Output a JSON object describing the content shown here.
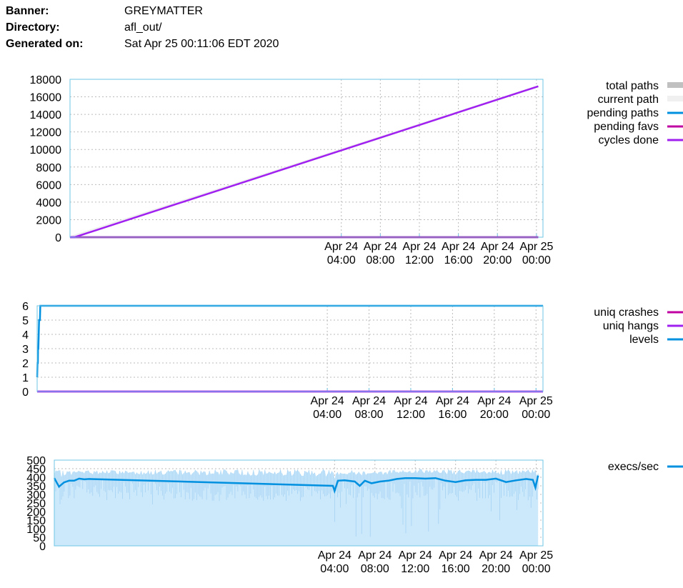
{
  "header": {
    "banner_label": "Banner:",
    "banner_value": "GREYMATTER",
    "directory_label": "Directory:",
    "directory_value": "afl_out/",
    "generated_label": "Generated on:",
    "generated_value": "Sat Apr 25 00:11:06 EDT 2020"
  },
  "chart_data": [
    {
      "type": "line",
      "x_range": [
        "2020-04-23 00:12",
        "2020-04-25 00:40"
      ],
      "xtick_labels": [
        {
          "x": "2020-04-24 04:00",
          "line1": "Apr 24",
          "line2": "04:00"
        },
        {
          "x": "2020-04-24 08:00",
          "line1": "Apr 24",
          "line2": "08:00"
        },
        {
          "x": "2020-04-24 12:00",
          "line1": "Apr 24",
          "line2": "12:00"
        },
        {
          "x": "2020-04-24 16:00",
          "line1": "Apr 24",
          "line2": "16:00"
        },
        {
          "x": "2020-04-24 20:00",
          "line1": "Apr 24",
          "line2": "20:00"
        },
        {
          "x": "2020-04-25 00:00",
          "line1": "Apr 25",
          "line2": "00:00"
        }
      ],
      "yticks": [
        0,
        2000,
        4000,
        6000,
        8000,
        10000,
        12000,
        14000,
        16000,
        18000
      ],
      "ylim": [
        0,
        18000
      ],
      "grid": true,
      "legend_position": "right",
      "series": [
        {
          "name": "total paths",
          "color": "#c0c0c0",
          "x": [
            "2020-04-23 00:12",
            "2020-04-25 00:11"
          ],
          "values": [
            0,
            17200
          ]
        },
        {
          "name": "current path",
          "color": "#f0f0f0",
          "x": [
            "2020-04-23 00:12",
            "2020-04-25 00:11"
          ],
          "values": [
            0,
            17200
          ]
        },
        {
          "name": "pending paths",
          "color": "#0090e0",
          "x": [
            "2020-04-23 00:12",
            "2020-04-25 00:11"
          ],
          "values": [
            0,
            0
          ]
        },
        {
          "name": "pending favs",
          "color": "#c000a0",
          "x": [
            "2020-04-23 00:12",
            "2020-04-25 00:11"
          ],
          "values": [
            0,
            0
          ]
        },
        {
          "name": "cycles done",
          "color": "#a020f0",
          "x": [
            "2020-04-23 00:12",
            "2020-04-23 00:40",
            "2020-04-25 00:11"
          ],
          "values": [
            0,
            0,
            17200
          ]
        }
      ]
    },
    {
      "type": "line",
      "x_range": [
        "2020-04-23 00:12",
        "2020-04-25 00:40"
      ],
      "xtick_labels": [
        {
          "x": "2020-04-24 04:00",
          "line1": "Apr 24",
          "line2": "04:00"
        },
        {
          "x": "2020-04-24 08:00",
          "line1": "Apr 24",
          "line2": "08:00"
        },
        {
          "x": "2020-04-24 12:00",
          "line1": "Apr 24",
          "line2": "12:00"
        },
        {
          "x": "2020-04-24 16:00",
          "line1": "Apr 24",
          "line2": "16:00"
        },
        {
          "x": "2020-04-24 20:00",
          "line1": "Apr 24",
          "line2": "20:00"
        },
        {
          "x": "2020-04-25 00:00",
          "line1": "Apr 25",
          "line2": "00:00"
        }
      ],
      "yticks": [
        0,
        1,
        2,
        3,
        4,
        5,
        6
      ],
      "ylim": [
        0,
        6
      ],
      "grid": true,
      "legend_position": "right",
      "series": [
        {
          "name": "uniq crashes",
          "color": "#c000a0",
          "x": [
            "2020-04-23 00:12",
            "2020-04-25 00:40"
          ],
          "values": [
            0,
            0
          ]
        },
        {
          "name": "uniq hangs",
          "color": "#a020f0",
          "x": [
            "2020-04-23 00:12",
            "2020-04-25 00:40"
          ],
          "values": [
            0,
            0
          ]
        },
        {
          "name": "levels",
          "color": "#0090e0",
          "x": [
            "2020-04-23 00:12",
            "2020-04-23 00:14",
            "2020-04-23 00:16",
            "2020-04-23 00:17",
            "2020-04-23 00:19",
            "2020-04-23 00:21",
            "2020-04-23 00:23",
            "2020-04-23 00:25",
            "2020-04-23 00:28",
            "2020-04-23 00:30",
            "2020-04-23 00:32",
            "2020-04-23 00:35",
            "2020-04-25 00:40"
          ],
          "values": [
            1,
            2,
            2,
            3,
            3,
            4,
            5,
            5,
            5,
            6,
            6,
            6,
            6
          ]
        }
      ]
    },
    {
      "type": "area",
      "x_range": [
        "2020-04-23 00:12",
        "2020-04-25 00:40"
      ],
      "xtick_labels": [
        {
          "x": "2020-04-24 04:00",
          "line1": "Apr 24",
          "line2": "04:00"
        },
        {
          "x": "2020-04-24 08:00",
          "line1": "Apr 24",
          "line2": "08:00"
        },
        {
          "x": "2020-04-24 12:00",
          "line1": "Apr 24",
          "line2": "12:00"
        },
        {
          "x": "2020-04-24 16:00",
          "line1": "Apr 24",
          "line2": "16:00"
        },
        {
          "x": "2020-04-24 20:00",
          "line1": "Apr 24",
          "line2": "20:00"
        },
        {
          "x": "2020-04-25 00:00",
          "line1": "Apr 25",
          "line2": "00:00"
        }
      ],
      "yticks": [
        0,
        50,
        100,
        150,
        200,
        250,
        300,
        350,
        400,
        450,
        500
      ],
      "ylim": [
        0,
        500
      ],
      "grid": true,
      "legend_position": "right",
      "series": [
        {
          "name": "execs/sec",
          "color": "#0090e0",
          "fill": "#cce8fb",
          "x": [
            "2020-04-23 00:12",
            "2020-04-23 00:40",
            "2020-04-23 01:10",
            "2020-04-23 01:40",
            "2020-04-23 02:10",
            "2020-04-23 02:40",
            "2020-04-23 03:10",
            "2020-04-23 03:40",
            "2020-04-24 03:50",
            "2020-04-24 04:00",
            "2020-04-24 04:20",
            "2020-04-24 05:00",
            "2020-04-24 06:00",
            "2020-04-24 06:30",
            "2020-04-24 07:00",
            "2020-04-24 07:40",
            "2020-04-24 08:30",
            "2020-04-24 09:20",
            "2020-04-24 10:10",
            "2020-04-24 11:00",
            "2020-04-24 12:00",
            "2020-04-24 13:00",
            "2020-04-24 14:00",
            "2020-04-24 15:00",
            "2020-04-24 16:00",
            "2020-04-24 17:00",
            "2020-04-24 18:00",
            "2020-04-24 19:00",
            "2020-04-24 20:00",
            "2020-04-24 21:00",
            "2020-04-24 22:00",
            "2020-04-24 23:00",
            "2020-04-24 23:40",
            "2020-04-24 23:55",
            "2020-04-25 00:11"
          ],
          "values": [
            395,
            345,
            370,
            380,
            380,
            392,
            388,
            390,
            350,
            320,
            380,
            382,
            375,
            350,
            380,
            365,
            375,
            380,
            390,
            395,
            395,
            392,
            395,
            380,
            372,
            382,
            385,
            385,
            392,
            372,
            382,
            390,
            385,
            340,
            410
          ]
        },
        {
          "name": "execs/sec spread",
          "color": "#8ac4ef",
          "x": [
            "2020-04-23 00:12",
            "2020-04-23 00:20",
            "2020-04-24 03:45",
            "2020-04-24 04:05",
            "2020-04-24 05:30",
            "2020-04-24 05:50",
            "2020-04-24 09:00",
            "2020-04-24 12:40",
            "2020-04-24 17:00",
            "2020-04-24 23:40",
            "2020-04-24 23:58",
            "2020-04-25 00:11"
          ],
          "high": [
            420,
            440,
            450,
            430,
            445,
            440,
            445,
            450,
            445,
            445,
            450,
            425
          ],
          "low": [
            300,
            210,
            300,
            10,
            250,
            30,
            70,
            40,
            80,
            170,
            0,
            300
          ]
        }
      ]
    }
  ]
}
